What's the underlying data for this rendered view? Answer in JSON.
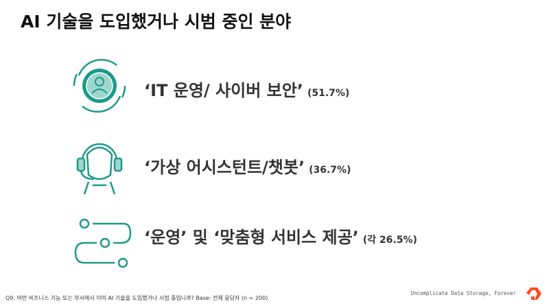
{
  "header": {
    "title": "AI 기술을 도입했거나 시범 중인 분야"
  },
  "items": [
    {
      "label": "‘IT 운영/ 사이버 보안’",
      "note": "(51.7%)"
    },
    {
      "label": "‘가상 어시스턴트/챗봇’",
      "note": "(36.7%)"
    },
    {
      "label": "‘운영’ 및 ‘맞춤형 서비스 제공’",
      "note": "(각 26.5%)"
    }
  ],
  "footer": {
    "footnote": "Q9. 어떤 비즈니스 기능 또는 부서에서 이미 AI 기술을 도입했거나 시험 중입니까? Base: 전체 응답자 (n = 200)",
    "tagline": "Uncomplicate Data Storage, Forever"
  }
}
